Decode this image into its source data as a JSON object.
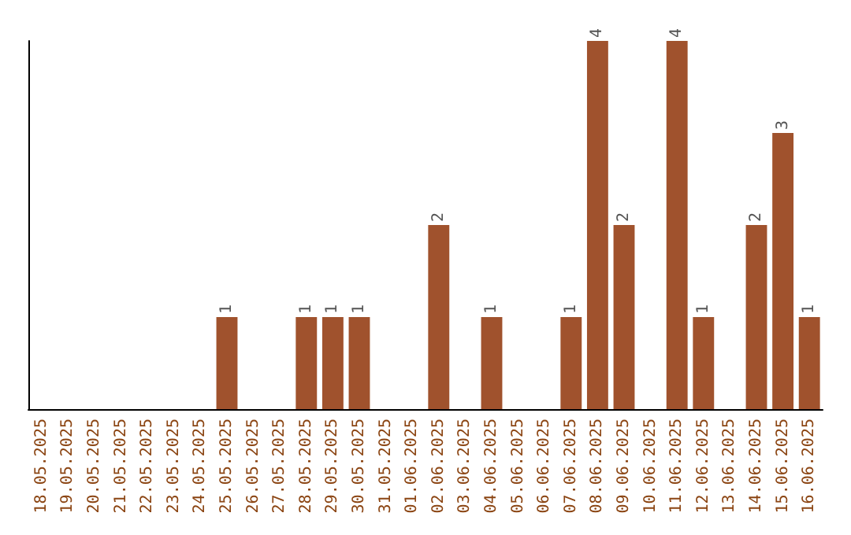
{
  "chart_data": {
    "type": "bar",
    "categories": [
      "18.05.2025",
      "19.05.2025",
      "20.05.2025",
      "21.05.2025",
      "22.05.2025",
      "23.05.2025",
      "24.05.2025",
      "25.05.2025",
      "26.05.2025",
      "27.05.2025",
      "28.05.2025",
      "29.05.2025",
      "30.05.2025",
      "31.05.2025",
      "01.06.2025",
      "02.06.2025",
      "03.06.2025",
      "04.06.2025",
      "05.06.2025",
      "06.06.2025",
      "07.06.2025",
      "08.06.2025",
      "09.06.2025",
      "10.06.2025",
      "11.06.2025",
      "12.06.2025",
      "13.06.2025",
      "14.06.2025",
      "15.06.2025",
      "16.06.2025"
    ],
    "values": [
      0,
      0,
      0,
      0,
      0,
      0,
      0,
      1,
      0,
      0,
      1,
      1,
      1,
      0,
      0,
      2,
      0,
      1,
      0,
      0,
      1,
      4,
      2,
      0,
      4,
      1,
      0,
      2,
      3,
      1
    ],
    "value_labels": [
      null,
      null,
      null,
      null,
      null,
      null,
      null,
      "1",
      null,
      null,
      "1",
      "1",
      "1",
      null,
      null,
      "2",
      null,
      "1",
      null,
      null,
      "1",
      "4",
      "2",
      null,
      "4",
      "1",
      null,
      "2",
      "3",
      "1"
    ],
    "color": "#a0522d",
    "tick_labels": "x"
  }
}
